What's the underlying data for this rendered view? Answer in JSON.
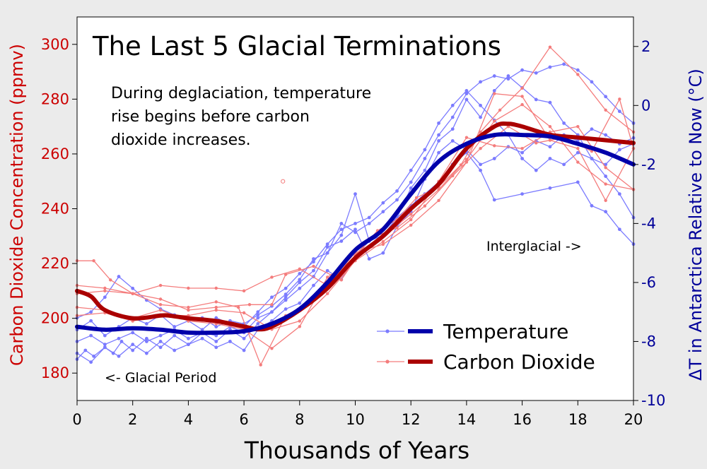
{
  "chart_data": {
    "type": "line",
    "title": "The Last 5 Glacial Terminations",
    "annotation": "During deglaciation, temperature rise begins before carbon dioxide increases.",
    "annotation_lines": [
      "During deglaciation, temperature",
      "rise begins before carbon",
      "dioxide increases."
    ],
    "label_glacial": "<- Glacial Period",
    "label_interglacial": "Interglacial ->",
    "xlabel": "Thousands of Years",
    "ylabel_left": "Carbon Dioxide Concentration (ppmv)",
    "ylabel_right": "ΔT in Antarctica Relative to Now (°C)",
    "xlim": [
      0,
      20
    ],
    "ylim_left": [
      170,
      310
    ],
    "ylim_right": [
      -10,
      3
    ],
    "xticks": [
      0,
      2,
      4,
      6,
      8,
      10,
      12,
      14,
      16,
      18,
      20
    ],
    "yticks_left": [
      180,
      200,
      220,
      240,
      260,
      280,
      300
    ],
    "yticks_right": [
      -10,
      -8,
      -6,
      -4,
      -2,
      0,
      2
    ],
    "grid": false,
    "legend_position": "bottom-right",
    "legend": [
      {
        "label": "Temperature",
        "color": "#0000aa",
        "raw_color": "#7b7bff"
      },
      {
        "label": "Carbon Dioxide",
        "color": "#aa0000",
        "raw_color": "#f47c7c"
      }
    ],
    "series": [
      {
        "name": "Temperature",
        "axis": "right",
        "color": "#0000aa",
        "x": [
          0,
          1,
          2,
          3,
          4,
          5,
          6,
          7,
          8,
          9,
          10,
          11,
          12,
          13,
          14,
          15,
          16,
          17,
          18,
          19,
          20
        ],
        "y": [
          -7.5,
          -7.6,
          -7.55,
          -7.6,
          -7.7,
          -7.7,
          -7.65,
          -7.4,
          -6.9,
          -6.0,
          -4.9,
          -4.2,
          -3.0,
          -1.9,
          -1.3,
          -1.0,
          -1.0,
          -1.05,
          -1.3,
          -1.6,
          -2.0
        ]
      },
      {
        "name": "Carbon Dioxide",
        "axis": "left",
        "color": "#aa0000",
        "x": [
          0,
          0.5,
          1,
          2,
          3,
          3.3,
          4,
          5,
          6,
          6.5,
          7,
          8,
          9,
          10,
          11,
          12,
          13,
          14,
          15,
          15.5,
          16,
          17,
          18,
          19,
          20
        ],
        "y": [
          210,
          208,
          203,
          200,
          201,
          201,
          200,
          199,
          197,
          196,
          197,
          203,
          211,
          222,
          230,
          240,
          249,
          262,
          270,
          271,
          270,
          267,
          266,
          265,
          264
        ]
      }
    ],
    "raw_temperature_records": [
      {
        "x": [
          0,
          0.3,
          0.6,
          1.0,
          1.3,
          1.6,
          2.0,
          2.5,
          3.0,
          3.5,
          4.0,
          4.5,
          5.0,
          5.5,
          6.0,
          6.5,
          7.0,
          7.5,
          8.0,
          8.5,
          9.0,
          9.5,
          10.0,
          10.5,
          11.0,
          11.5,
          12.0,
          12.5,
          13.0,
          13.5,
          14.0,
          14.5,
          15.0,
          15.5,
          16.0,
          16.5,
          17.0,
          17.5,
          18.0,
          18.5,
          19.0,
          19.5,
          20.0
        ],
        "y": [
          -8.6,
          -8.3,
          -8.5,
          -8.2,
          -8.4,
          -8.0,
          -8.3,
          -7.9,
          -8.2,
          -7.8,
          -8.1,
          -7.7,
          -8.0,
          -7.6,
          -7.9,
          -7.4,
          -7.0,
          -6.6,
          -6.2,
          -5.8,
          -5.0,
          -4.4,
          -3.0,
          -4.6,
          -4.2,
          -3.8,
          -2.8,
          -2.2,
          -1.2,
          -0.8,
          0.2,
          -0.4,
          0.5,
          1.0,
          0.6,
          0.2,
          0.1,
          -0.6,
          -1.0,
          -1.8,
          -2.4,
          -3.0,
          -3.8
        ]
      },
      {
        "x": [
          0,
          0.5,
          1.0,
          1.5,
          2.0,
          2.5,
          3.0,
          3.5,
          4.0,
          4.5,
          5.0,
          5.5,
          6.0,
          6.5,
          7.0,
          7.5,
          8.0,
          8.5,
          9.0,
          9.5,
          10.0,
          10.5,
          11.0,
          11.5,
          12.0,
          12.5,
          13.0,
          13.5,
          14.0,
          14.5,
          15.0,
          15.5,
          16.0,
          16.5,
          17.0,
          17.5,
          18.0,
          18.5,
          19.0,
          19.5,
          20.0
        ],
        "y": [
          -7.2,
          -7.0,
          -6.5,
          -5.8,
          -6.2,
          -6.6,
          -6.9,
          -7.1,
          -7.3,
          -7.2,
          -7.5,
          -7.3,
          -7.4,
          -7.1,
          -6.8,
          -6.4,
          -5.9,
          -5.2,
          -5.0,
          -4.0,
          -4.3,
          -4.0,
          -3.6,
          -3.2,
          -2.6,
          -1.8,
          -1.0,
          -0.4,
          0.4,
          0.8,
          1.0,
          0.9,
          1.2,
          1.1,
          1.3,
          1.4,
          1.2,
          0.8,
          0.3,
          -0.2,
          -0.6
        ]
      },
      {
        "x": [
          0,
          0.5,
          1.0,
          1.5,
          2.0,
          2.5,
          3.0,
          3.5,
          4.0,
          4.5,
          5.0,
          5.5,
          6.0,
          6.5,
          7.0,
          7.5,
          8.0,
          8.5,
          9.0,
          9.5,
          10.0,
          10.5,
          11.0,
          11.5,
          12.0,
          12.5,
          13.0,
          13.5,
          14.0,
          14.5,
          15.0,
          15.5,
          16.0,
          16.5,
          17.0,
          17.5,
          18.0,
          18.5,
          19.0,
          19.5,
          20.0
        ],
        "y": [
          -8.0,
          -7.8,
          -8.1,
          -7.9,
          -7.7,
          -8.0,
          -7.8,
          -7.6,
          -7.9,
          -7.7,
          -7.8,
          -7.5,
          -7.7,
          -7.2,
          -7.0,
          -6.5,
          -6.0,
          -5.6,
          -4.8,
          -4.6,
          -4.2,
          -5.2,
          -5.0,
          -4.1,
          -3.6,
          -2.5,
          -1.6,
          -1.2,
          -1.5,
          -2.0,
          -1.8,
          -1.4,
          -1.6,
          -1.2,
          -1.4,
          -1.0,
          -1.2,
          -0.8,
          -1.0,
          -1.3,
          -1.1
        ]
      },
      {
        "x": [
          0,
          0.5,
          1.0,
          1.5,
          2.0,
          2.5,
          3.0,
          3.5,
          4.0,
          4.5,
          5.0,
          5.5,
          6.0,
          6.5,
          7.0,
          7.5,
          8.0,
          8.5,
          9.0,
          9.5,
          10.0,
          10.5,
          11.0,
          11.5,
          12.0,
          12.5,
          13.0,
          13.5,
          14.0,
          14.5,
          15.0,
          16.0,
          17.0,
          18.0,
          18.5,
          19.0,
          19.5,
          20.0
        ],
        "y": [
          -8.4,
          -8.7,
          -8.2,
          -8.5,
          -8.1,
          -8.4,
          -8.0,
          -8.3,
          -8.1,
          -7.9,
          -8.2,
          -8.0,
          -8.3,
          -7.6,
          -7.3,
          -6.9,
          -6.7,
          -6.1,
          -5.6,
          -5.9,
          -5.1,
          -4.6,
          -4.4,
          -3.8,
          -3.4,
          -3.0,
          -2.6,
          -2.0,
          -1.6,
          -2.2,
          -3.2,
          -3.0,
          -2.8,
          -2.6,
          -3.4,
          -3.6,
          -4.2,
          -4.7
        ]
      },
      {
        "x": [
          0,
          0.5,
          1.0,
          1.5,
          2.0,
          2.5,
          3.0,
          3.5,
          4.0,
          4.5,
          5.0,
          5.5,
          6.0,
          6.5,
          7.0,
          7.5,
          8.0,
          8.5,
          9.0,
          9.5,
          10.0,
          10.5,
          11.0,
          11.5,
          12.0,
          12.5,
          13.0,
          13.5,
          14.0,
          14.5,
          15.0,
          15.5,
          16.0,
          16.5,
          17.0,
          17.5,
          18.0,
          18.5,
          19.0,
          19.5,
          20.0
        ],
        "y": [
          -7.6,
          -7.3,
          -7.8,
          -7.5,
          -7.2,
          -7.4,
          -7.1,
          -7.5,
          -7.3,
          -7.6,
          -7.2,
          -7.4,
          -7.5,
          -7.0,
          -6.5,
          -6.2,
          -5.7,
          -5.3,
          -4.7,
          -4.2,
          -4.0,
          -3.8,
          -3.3,
          -2.9,
          -2.2,
          -1.5,
          -0.6,
          0.0,
          0.5,
          0.0,
          -0.5,
          -1.0,
          -1.8,
          -2.2,
          -1.8,
          -2.0,
          -1.6,
          -1.8,
          -2.0,
          -1.5,
          -1.3
        ]
      }
    ],
    "raw_co2_records": [
      {
        "x": [
          0,
          0.6,
          1.2,
          2.0,
          3.0,
          4.0,
          5.0,
          5.8,
          6.6,
          7.5,
          8.4,
          9.2,
          10.0,
          10.8,
          11.5,
          12.2,
          13.0,
          13.8,
          14.5,
          15.2,
          16.0,
          17.0,
          18.0,
          19.0,
          20.0
        ],
        "y": [
          221,
          221,
          214,
          209,
          205,
          204,
          206,
          204,
          183,
          201,
          206,
          214,
          223,
          232,
          236,
          244,
          248,
          256,
          268,
          276,
          284,
          299,
          289,
          276,
          268
        ]
      },
      {
        "x": [
          0,
          1.0,
          2.0,
          3.0,
          4.0,
          5.0,
          6.2,
          7.0,
          7.5,
          8.5,
          9.5,
          10.5,
          11.5,
          12.5,
          13.5,
          14.5,
          15.5,
          16.5,
          17.5,
          18.5,
          19.5,
          20.0
        ],
        "y": [
          212,
          211,
          209,
          207,
          203,
          204,
          205,
          205,
          216,
          219,
          214,
          229,
          233,
          241,
          252,
          262,
          270,
          264,
          266,
          261,
          280,
          262
        ]
      },
      {
        "x": [
          0,
          1.0,
          2.0,
          3.0,
          4.0,
          5.0,
          6.0,
          7.0,
          8.0,
          9.0,
          10.0,
          11.0,
          12.0,
          13.0,
          14.0,
          15.0,
          16.0,
          17.0,
          18.0,
          19.0,
          20.0
        ],
        "y": [
          204,
          203,
          200,
          203,
          199,
          198,
          196,
          189,
          197,
          215,
          222,
          230,
          238,
          247,
          258,
          272,
          278,
          270,
          257,
          249,
          247
        ]
      },
      {
        "x": [
          0,
          1.0,
          2.0,
          3.0,
          4.0,
          5.0,
          6.0,
          7.0,
          8.0,
          9.0,
          10.0,
          11.0,
          12.0,
          13.0,
          14.0,
          15.0,
          16.0,
          17.0,
          18.0,
          19.0,
          20.0
        ],
        "y": [
          201,
          202,
          199,
          201,
          201,
          203,
          202,
          196,
          199,
          209,
          221,
          228,
          236,
          250,
          266,
          263,
          262,
          268,
          270,
          255,
          247
        ]
      },
      {
        "x": [
          0,
          1.0,
          2.0,
          3.0,
          4.0,
          5.0,
          6.0,
          7.0,
          8.0,
          9.0,
          10.0,
          11.0,
          12.0,
          13.0,
          14.0,
          15.0,
          16.0,
          17.0,
          18.0,
          19.0,
          20.0
        ],
        "y": [
          209,
          210,
          209,
          212,
          211,
          211,
          210,
          215,
          218,
          212,
          224,
          227,
          234,
          243,
          257,
          282,
          281,
          265,
          262,
          243,
          262
        ]
      }
    ],
    "outlier_point": {
      "x": 7.4,
      "y": 250
    }
  }
}
